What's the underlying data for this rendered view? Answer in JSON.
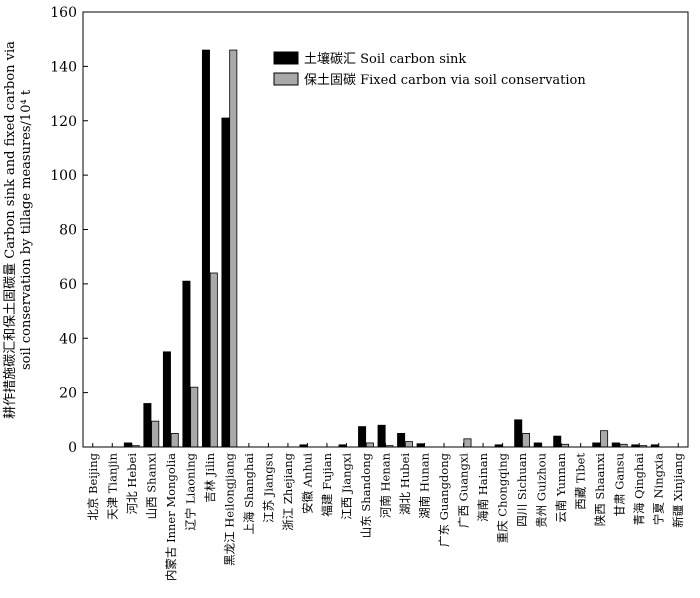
{
  "chart_data": {
    "type": "bar",
    "ylabel_line1": "耕作措施碳汇和保土固碳量 Carbon sink and fixed carbon via",
    "ylabel_line2": "soil conservation by tillage measures/10⁴ t",
    "ylim": [
      0,
      160
    ],
    "yticks": [
      "0",
      "20",
      "40",
      "60",
      "80",
      "100",
      "120",
      "140",
      "160"
    ],
    "grid": false,
    "legend_position": "top-right",
    "categories": [
      "北京 Beijing",
      "天津 Tianjin",
      "河北 Hebei",
      "山西 Shanxi",
      "内蒙古 Inner Mongolia",
      "辽宁 Liaoning",
      "吉林 Jilin",
      "黑龙江 Heilongjiang",
      "上海 Shanghai",
      "江苏 Jiangsu",
      "浙江 Zhejiang",
      "安徽 Anhui",
      "福建 Fujian",
      "江西 Jiangxi",
      "山东 Shandong",
      "河南 Henan",
      "湖北 Hubei",
      "湖南 Hunan",
      "广东 Guangdong",
      "广西 Guangxi",
      "海南 Hainan",
      "重庆 Chongqing",
      "四川 Sichuan",
      "贵州 Guizhou",
      "云南 Yunnan",
      "西藏 Tibet",
      "陕西 Shaanxi",
      "甘肃 Gansu",
      "青海 Qinghai",
      "宁夏 Ningxia",
      "新疆 Xinjiang"
    ],
    "series": [
      {
        "name": "土壤碳汇 Soil carbon sink",
        "color": "#000000",
        "values": [
          0,
          0,
          1.5,
          16,
          35,
          61,
          146,
          121,
          0,
          0,
          0,
          0.8,
          0,
          0.8,
          7.5,
          8,
          5,
          1.2,
          0,
          0,
          0,
          0.8,
          10,
          1.5,
          4,
          0,
          1.5,
          1.5,
          0.8,
          0.8,
          0
        ]
      },
      {
        "name": "保土固碳 Fixed carbon via soil conservation",
        "color": "#a9a9a9",
        "values": [
          0,
          0,
          0.5,
          9.5,
          5,
          22,
          64,
          146,
          0,
          0,
          0,
          0,
          0,
          0,
          1.5,
          0.5,
          2,
          0,
          0,
          3,
          0,
          0,
          5,
          0,
          1,
          0,
          6,
          1,
          0.5,
          0,
          0
        ]
      }
    ]
  }
}
